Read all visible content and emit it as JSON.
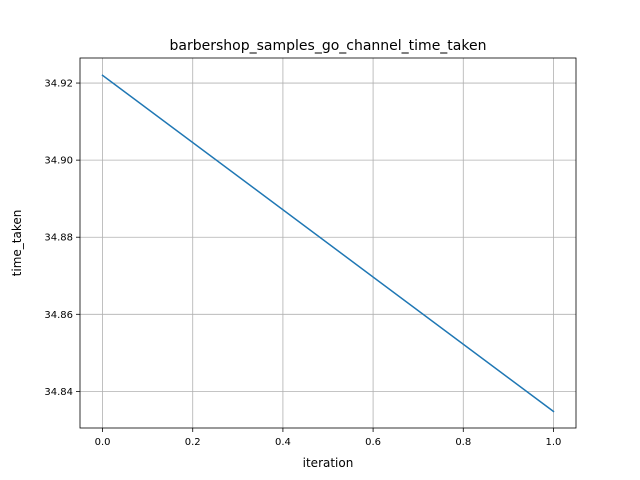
{
  "chart_data": {
    "type": "line",
    "title": "barbershop_samples_go_channel_time_taken",
    "xlabel": "iteration",
    "ylabel": "time_taken",
    "xlim": [
      -0.05,
      1.05
    ],
    "ylim": [
      34.8305,
      34.9265
    ],
    "grid": true,
    "x_ticks": [
      0.0,
      0.2,
      0.4,
      0.6,
      0.8,
      1.0
    ],
    "x_tick_labels": [
      "0.0",
      "0.2",
      "0.4",
      "0.6",
      "0.8",
      "1.0"
    ],
    "y_ticks": [
      34.84,
      34.86,
      34.88,
      34.9,
      34.92
    ],
    "y_tick_labels": [
      "34.84",
      "34.86",
      "34.88",
      "34.90",
      "34.92"
    ],
    "series": [
      {
        "color": "#1f77b4",
        "x": [
          0.0,
          1.0
        ],
        "y": [
          34.922,
          34.8348
        ]
      }
    ]
  }
}
